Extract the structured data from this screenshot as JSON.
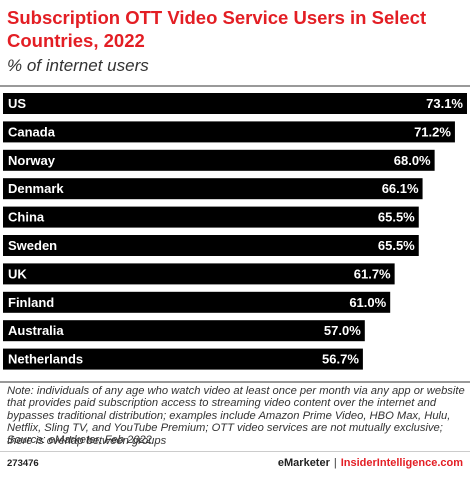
{
  "header": {
    "title": "Subscription OTT Video Service Users in Select Countries, 2022",
    "subtitle": "% of internet users"
  },
  "chart_data": {
    "type": "bar",
    "orientation": "horizontal",
    "title": "Subscription OTT Video Service Users in Select Countries, 2022",
    "subtitle": "% of internet users",
    "categories": [
      "US",
      "Canada",
      "Norway",
      "Denmark",
      "China",
      "Sweden",
      "UK",
      "Finland",
      "Australia",
      "Netherlands"
    ],
    "values": [
      73.1,
      71.2,
      68.0,
      66.1,
      65.5,
      65.5,
      61.7,
      61.0,
      57.0,
      56.7
    ],
    "value_labels": [
      "73.1%",
      "71.2%",
      "68.0%",
      "66.1%",
      "65.5%",
      "65.5%",
      "61.7%",
      "61.0%",
      "57.0%",
      "56.7%"
    ],
    "xlim": [
      0,
      73.1
    ],
    "bar_color": "#000000",
    "label_color": "#ffffff",
    "grid": false,
    "legend": "none"
  },
  "footer": {
    "note": "Note: individuals of any age who watch video at least once per month via any app or website that provides paid subscription access to streaming video content over the internet and bypasses traditional distribution; examples include Amazon Prime Video, HBO Max, Hulu, Netflix, Sling TV, and YouTube Premium; OTT video services are not mutually exclusive; there is overlap between groups",
    "source": "Source: eMarketer, Feb 2022",
    "chart_id": "273476",
    "brand": "eMarketer",
    "separator": "|",
    "site": "InsiderIntelligence.com"
  },
  "colors": {
    "accent": "#e31e24",
    "bar": "#000000",
    "text": "#333333"
  }
}
